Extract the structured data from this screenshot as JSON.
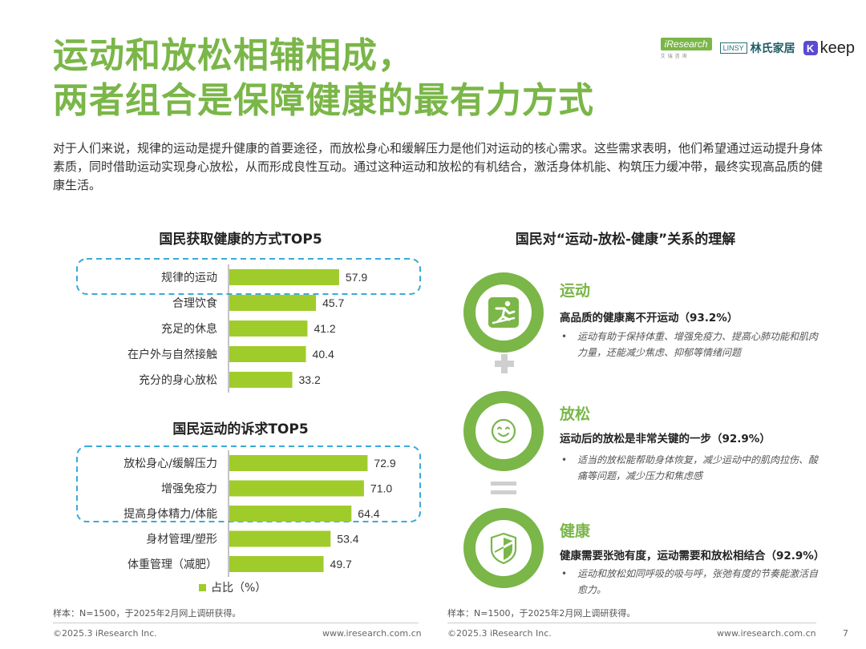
{
  "title": {
    "line1": "运动和放松相辅相成，",
    "line2": "两者组合是保障健康的最有力方式"
  },
  "logos": {
    "iresearch": "iResearch",
    "iresearch_sub": "艾瑞咨询",
    "linsy": "LINSY",
    "linsy_cn": "林氏家居",
    "keep_k": "K",
    "keep": "keep"
  },
  "intro": "对于人们来说，规律的运动是提升健康的首要途径，而放松身心和缓解压力是他们对运动的核心需求。这些需求表明，他们希望通过运动提升身体素质，同时借助运动实现身心放松，从而形成良性互动。通过这种运动和放松的有机结合，激活身体机能、构筑压力缓冲带，最终实现高品质的健康生活。",
  "chart_data": [
    {
      "type": "bar",
      "orientation": "horizontal",
      "title": "国民获取健康的方式TOP5",
      "categories": [
        "规律的运动",
        "合理饮食",
        "充足的休息",
        "在户外与自然接触",
        "充分的身心放松"
      ],
      "values": [
        57.9,
        45.7,
        41.2,
        40.4,
        33.2
      ],
      "highlighted": [
        "规律的运动"
      ],
      "color": "#a0cc2b"
    },
    {
      "type": "bar",
      "orientation": "horizontal",
      "title": "国民运动的诉求TOP5",
      "categories": [
        "放松身心/缓解压力",
        "增强免疫力",
        "提高身体精力/体能",
        "身材管理/塑形",
        "体重管理（减肥）"
      ],
      "values": [
        72.9,
        71.0,
        64.4,
        53.4,
        49.7
      ],
      "highlighted": [
        "放松身心/缓解压力",
        "增强免疫力",
        "提高身体精力/体能"
      ],
      "color": "#a0cc2b"
    }
  ],
  "legend": {
    "label": "占比（%）"
  },
  "right": {
    "title": "国民对“运动-放松-健康”关系的理解",
    "items": [
      {
        "icon": "exercise-icon",
        "head": "运动",
        "sub": "高品质的健康离不开运动（93.2%）",
        "bullet_mark": "•",
        "bullet": "运动有助于保持体重、增强免疫力、提高心肺功能和肌肉力量，还能减少焦虑、抑郁等情绪问题"
      },
      {
        "icon": "smile-icon",
        "head": "放松",
        "sub": "运动后的放松是非常关键的一步（92.9%）",
        "bullet_mark": "•",
        "bullet": "适当的放松能帮助身体恢复，减少运动中的肌肉拉伤、酸痛等问题，减少压力和焦虑感"
      },
      {
        "icon": "shield-icon",
        "head": "健康",
        "sub": "健康需要张弛有度，运动需要和放松相结合（92.9%）",
        "bullet_mark": "•",
        "bullet": "运动和放松如同呼吸的吸与呼，张弛有度的节奏能激活自愈力。"
      }
    ]
  },
  "notes": {
    "left": "样本：N=1500，于2025年2月网上调研获得。",
    "right": "样本：N=1500，于2025年2月网上调研获得。"
  },
  "footer": {
    "copyright_left": "©2025.3 iResearch Inc.",
    "url_left": "www.iresearch.com.cn",
    "copyright_right": "©2025.3 iResearch Inc.",
    "url_right": "www.iresearch.com.cn",
    "page": "7"
  },
  "colors": {
    "accent": "#7ab648",
    "bar": "#a0cc2b",
    "highlight_border": "#3aaad9",
    "operator": "#cfcfcf"
  }
}
